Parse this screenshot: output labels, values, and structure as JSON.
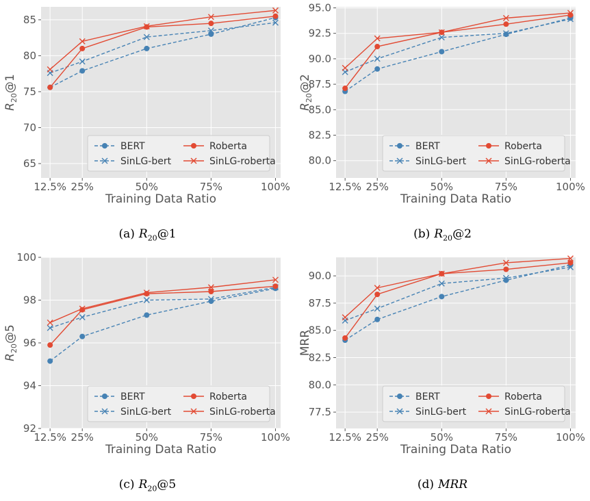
{
  "colors": {
    "bert": "#4682b4",
    "roberta": "#e24a33",
    "plot_bg": "#e5e5e5",
    "grid": "#ffffff",
    "text": "#555555"
  },
  "legend_labels": [
    "BERT",
    "SinLG-bert",
    "Roberta",
    "SinLG-roberta"
  ],
  "chart_data": [
    {
      "type": "line",
      "caption_label": "(a)",
      "caption_metric": "R",
      "caption_sub": "20",
      "caption_suffix": "@1",
      "ylabel_main": "R",
      "ylabel_sub": "20",
      "ylabel_suffix": "@1",
      "xlabel": "Training Data Ratio",
      "x": [
        12.5,
        25,
        50,
        75,
        100
      ],
      "xticklabels": [
        "12.5%",
        "25%",
        "50%",
        "75%",
        "100%"
      ],
      "xlim": [
        9,
        102
      ],
      "ylim": [
        63,
        86.8
      ],
      "yticks": [
        65,
        70,
        75,
        80,
        85
      ],
      "yticklabels": [
        "65",
        "70",
        "75",
        "80",
        "85"
      ],
      "grid": true,
      "legend": "lower-right",
      "series": [
        {
          "name": "BERT",
          "values": [
            75.6,
            77.9,
            81.0,
            83.0,
            85.3
          ],
          "color": "#4682b4",
          "dash": true,
          "marker": "circle"
        },
        {
          "name": "SinLG-bert",
          "values": [
            77.6,
            79.2,
            82.6,
            83.5,
            84.6
          ],
          "color": "#4682b4",
          "dash": true,
          "marker": "x"
        },
        {
          "name": "Roberta",
          "values": [
            75.6,
            81.0,
            84.0,
            84.5,
            85.5
          ],
          "color": "#e24a33",
          "dash": false,
          "marker": "circle"
        },
        {
          "name": "SinLG-roberta",
          "values": [
            78.1,
            82.0,
            84.1,
            85.4,
            86.3
          ],
          "color": "#e24a33",
          "dash": false,
          "marker": "x"
        }
      ]
    },
    {
      "type": "line",
      "caption_label": "(b)",
      "caption_metric": "R",
      "caption_sub": "20",
      "caption_suffix": "@2",
      "ylabel_main": "R",
      "ylabel_sub": "20",
      "ylabel_suffix": "@2",
      "xlabel": "Training Data Ratio",
      "x": [
        12.5,
        25,
        50,
        75,
        100
      ],
      "xticklabels": [
        "12.5%",
        "25%",
        "50%",
        "75%",
        "100%"
      ],
      "xlim": [
        9,
        102
      ],
      "ylim": [
        78.3,
        95.1
      ],
      "yticks": [
        80.0,
        82.5,
        85.0,
        87.5,
        90.0,
        92.5,
        95.0
      ],
      "yticklabels": [
        "80.0",
        "82.5",
        "85.0",
        "87.5",
        "90.0",
        "92.5",
        "95.0"
      ],
      "grid": true,
      "legend": "lower-right",
      "series": [
        {
          "name": "BERT",
          "values": [
            86.8,
            89.0,
            90.7,
            92.4,
            94.0
          ],
          "color": "#4682b4",
          "dash": true,
          "marker": "circle"
        },
        {
          "name": "SinLG-bert",
          "values": [
            88.7,
            90.0,
            92.1,
            92.5,
            93.9
          ],
          "color": "#4682b4",
          "dash": true,
          "marker": "x"
        },
        {
          "name": "Roberta",
          "values": [
            87.1,
            91.2,
            92.6,
            93.4,
            94.3
          ],
          "color": "#e24a33",
          "dash": false,
          "marker": "circle"
        },
        {
          "name": "SinLG-roberta",
          "values": [
            89.1,
            92.0,
            92.6,
            94.0,
            94.5
          ],
          "color": "#e24a33",
          "dash": false,
          "marker": "x"
        }
      ]
    },
    {
      "type": "line",
      "caption_label": "(c)",
      "caption_metric": "R",
      "caption_sub": "20",
      "caption_suffix": "@5",
      "ylabel_main": "R",
      "ylabel_sub": "20",
      "ylabel_suffix": "@5",
      "xlabel": "Training Data Ratio",
      "x": [
        12.5,
        25,
        50,
        75,
        100
      ],
      "xticklabels": [
        "12.5%",
        "25%",
        "50%",
        "75%",
        "100%"
      ],
      "xlim": [
        9,
        102
      ],
      "ylim": [
        92,
        100
      ],
      "yticks": [
        92,
        94,
        96,
        98,
        100
      ],
      "yticklabels": [
        "92",
        "94",
        "96",
        "98",
        "100"
      ],
      "grid": true,
      "legend": "lower-right",
      "series": [
        {
          "name": "BERT",
          "values": [
            95.15,
            96.3,
            97.3,
            97.95,
            98.55
          ],
          "color": "#4682b4",
          "dash": true,
          "marker": "circle"
        },
        {
          "name": "SinLG-bert",
          "values": [
            96.7,
            97.2,
            98.0,
            98.05,
            98.6
          ],
          "color": "#4682b4",
          "dash": true,
          "marker": "x"
        },
        {
          "name": "Roberta",
          "values": [
            95.9,
            97.55,
            98.3,
            98.4,
            98.65
          ],
          "color": "#e24a33",
          "dash": false,
          "marker": "circle"
        },
        {
          "name": "SinLG-roberta",
          "values": [
            96.95,
            97.6,
            98.35,
            98.6,
            98.95
          ],
          "color": "#e24a33",
          "dash": false,
          "marker": "x"
        }
      ]
    },
    {
      "type": "line",
      "caption_label": "(d)",
      "caption_metric": "MRR",
      "caption_sub": "",
      "caption_suffix": "",
      "ylabel_main": "MRR",
      "ylabel_sub": "",
      "ylabel_suffix": "",
      "xlabel": "Training Data Ratio",
      "x": [
        12.5,
        25,
        50,
        75,
        100
      ],
      "xticklabels": [
        "12.5%",
        "25%",
        "50%",
        "75%",
        "100%"
      ],
      "xlim": [
        9,
        102
      ],
      "ylim": [
        76.0,
        91.7
      ],
      "yticks": [
        77.5,
        80.0,
        82.5,
        85.0,
        87.5,
        90.0
      ],
      "yticklabels": [
        "77.5",
        "80.0",
        "82.5",
        "85.0",
        "87.5",
        "90.0"
      ],
      "grid": true,
      "legend": "lower-right",
      "series": [
        {
          "name": "BERT",
          "values": [
            84.1,
            86.0,
            88.1,
            89.6,
            91.0
          ],
          "color": "#4682b4",
          "dash": true,
          "marker": "circle"
        },
        {
          "name": "SinLG-bert",
          "values": [
            85.9,
            87.0,
            89.3,
            89.8,
            90.8
          ],
          "color": "#4682b4",
          "dash": true,
          "marker": "x"
        },
        {
          "name": "Roberta",
          "values": [
            84.3,
            88.3,
            90.2,
            90.6,
            91.2
          ],
          "color": "#e24a33",
          "dash": false,
          "marker": "circle"
        },
        {
          "name": "SinLG-roberta",
          "values": [
            86.2,
            88.9,
            90.2,
            91.2,
            91.6
          ],
          "color": "#e24a33",
          "dash": false,
          "marker": "x"
        }
      ]
    }
  ]
}
